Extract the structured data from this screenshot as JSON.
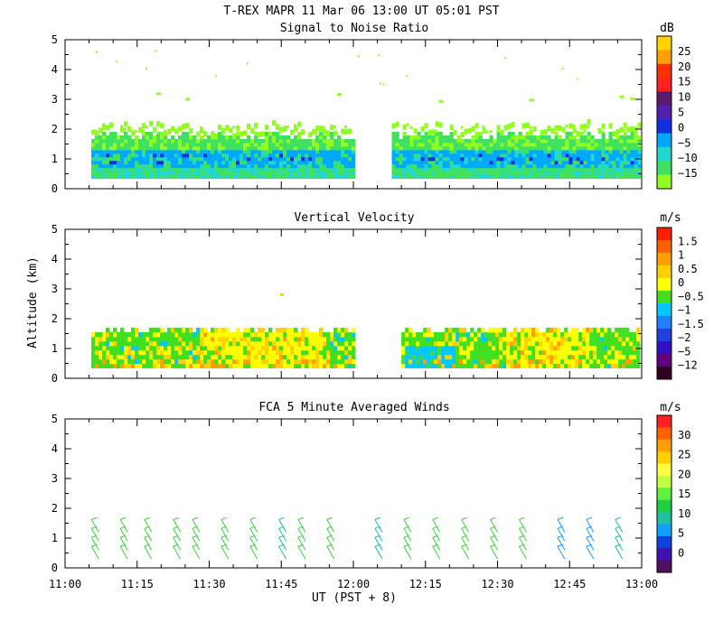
{
  "header": {
    "title": "T-REX   MAPR 11 Mar 06   13:00 UT   05:01   PST"
  },
  "y_axis_label": "Altitude (km)",
  "x_axis_label": "UT  (PST + 8)",
  "x_ticks": [
    "11:00",
    "11:15",
    "11:30",
    "11:45",
    "12:00",
    "12:15",
    "12:30",
    "12:45",
    "13:00"
  ],
  "y_ticks": [
    "0",
    "1",
    "2",
    "3",
    "4",
    "5"
  ],
  "chart_data": [
    {
      "type": "heatmap",
      "title": "Signal to Noise Ratio",
      "xlim": [
        "11:00",
        "13:00"
      ],
      "ylim": [
        0,
        5
      ],
      "ylabel": "Altitude (km)",
      "colorbar": {
        "unit": "dB",
        "labels": [
          "25",
          "20",
          "15",
          "10",
          "5",
          "0",
          "−5",
          "−10",
          "−15"
        ],
        "colors": [
          "#ffd400",
          "#ffa000",
          "#ff3000",
          "#ff2020",
          "#5a1a70",
          "#5020b0",
          "#1030e0",
          "#00a8ff",
          "#20d8d0",
          "#40e060",
          "#90ff20"
        ]
      },
      "data_gaps": [
        [
          "12:00",
          "12:08"
        ]
      ],
      "layers": [
        {
          "range_km": [
            0.3,
            0.8
          ],
          "snr_db": -10
        },
        {
          "range_km": [
            0.8,
            1.2
          ],
          "snr_db": -5
        },
        {
          "range_km": [
            1.2,
            1.8
          ],
          "snr_db": -10
        },
        {
          "range_km": [
            1.8,
            3.4
          ],
          "snr_db": -15
        }
      ]
    },
    {
      "type": "heatmap",
      "title": "Vertical Velocity",
      "xlim": [
        "11:00",
        "13:00"
      ],
      "ylim": [
        0,
        5
      ],
      "ylabel": "Altitude (km)",
      "colorbar": {
        "unit": "m/s",
        "labels": [
          "1.5",
          "1",
          "0.5",
          "0",
          "−0.5",
          "−1",
          "−1.5",
          "−2",
          "−5",
          "−12"
        ],
        "colors": [
          "#ff2000",
          "#ff6000",
          "#ffa000",
          "#ffd000",
          "#ffff00",
          "#40e020",
          "#00c8ff",
          "#2080ff",
          "#2040e0",
          "#3010c0",
          "#600080",
          "#300020"
        ]
      },
      "data_gaps": [
        [
          "12:00",
          "12:10"
        ]
      ],
      "layers": [
        {
          "range_km": [
            0.3,
            1.6
          ],
          "velocity_ms": 0
        }
      ]
    },
    {
      "type": "scatter",
      "title": "FCA 5 Minute Averaged Winds",
      "xlim": [
        "11:00",
        "13:00"
      ],
      "ylim": [
        0,
        5
      ],
      "ylabel": "Altitude (km)",
      "colorbar": {
        "unit": "m/s",
        "labels": [
          "30",
          "25",
          "20",
          "15",
          "10",
          "5",
          "0"
        ],
        "colors": [
          "#ff2020",
          "#ff6000",
          "#ffa000",
          "#ffd000",
          "#ffff40",
          "#c0ff40",
          "#60f040",
          "#20d040",
          "#20c0a0",
          "#10a0ff",
          "#1040e0",
          "#4010b0",
          "#501060"
        ]
      },
      "barb_times": [
        "11:07",
        "11:13",
        "11:18",
        "11:24",
        "11:28",
        "11:34",
        "11:40",
        "11:46",
        "11:50",
        "11:56",
        "12:06",
        "12:12",
        "12:18",
        "12:24",
        "12:30",
        "12:36",
        "12:44",
        "12:50",
        "12:56"
      ],
      "barb_altitudes_km": [
        0.3,
        0.6,
        0.9,
        1.2
      ],
      "barb_speed_ms": [
        13,
        13,
        13,
        12,
        11,
        13,
        12,
        9,
        12,
        11,
        9,
        13,
        12,
        11,
        12,
        11,
        8,
        8,
        9
      ]
    }
  ]
}
